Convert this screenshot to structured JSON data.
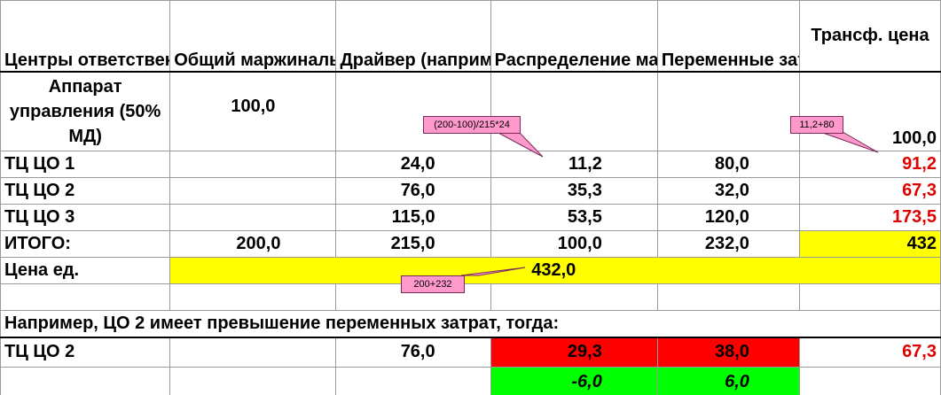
{
  "headers": {
    "col1": "Центры ответственности",
    "col2": "Общий маржинальный доход на ед.",
    "col3": "Драйвер (например трудоемкость)",
    "col4": "Распределение маржинального дохода",
    "col5": "Переменные затраты собственные",
    "col6": "Трансф. цена"
  },
  "apparat": {
    "label": "Аппарат управления (50% МД)",
    "total_margin": "100,0",
    "transfer_price": "100,0"
  },
  "rows": [
    {
      "name": "ТЦ  ЦО 1",
      "driver": "24,0",
      "allocation": "11,2",
      "var_costs": "80,0",
      "transfer": "91,2"
    },
    {
      "name": "ТЦ  ЦО 2",
      "driver": "76,0",
      "allocation": "35,3",
      "var_costs": "32,0",
      "transfer": "67,3"
    },
    {
      "name": "ТЦ  ЦО 3",
      "driver": "115,0",
      "allocation": "53,5",
      "var_costs": "120,0",
      "transfer": "173,5"
    }
  ],
  "total": {
    "label": "ИТОГО:",
    "margin": "200,0",
    "driver": "215,0",
    "allocation": "100,0",
    "var_costs": "232,0",
    "transfer": "432"
  },
  "unit_price": {
    "label": "Цена ед.",
    "value": "432,0"
  },
  "note": "Например, ЦО 2 имеет превышение переменных затрат, тогда:",
  "example": {
    "name": "ТЦ  ЦО 2",
    "driver": "76,0",
    "allocation": "29,3",
    "var_costs": "38,0",
    "transfer": "67,3",
    "diff_allocation": "-6,0",
    "diff_var_costs": "6,0"
  },
  "callouts": {
    "allocation_formula": "(200-100)/215*24",
    "transfer_formula": "11,2+80",
    "price_formula": "200+232"
  },
  "colors": {
    "highlight_yellow": "#ffff00",
    "value_red": "#e00000",
    "cell_red": "#ff0000",
    "cell_green": "#00ff00",
    "callout_pink": "#ff99cc"
  }
}
